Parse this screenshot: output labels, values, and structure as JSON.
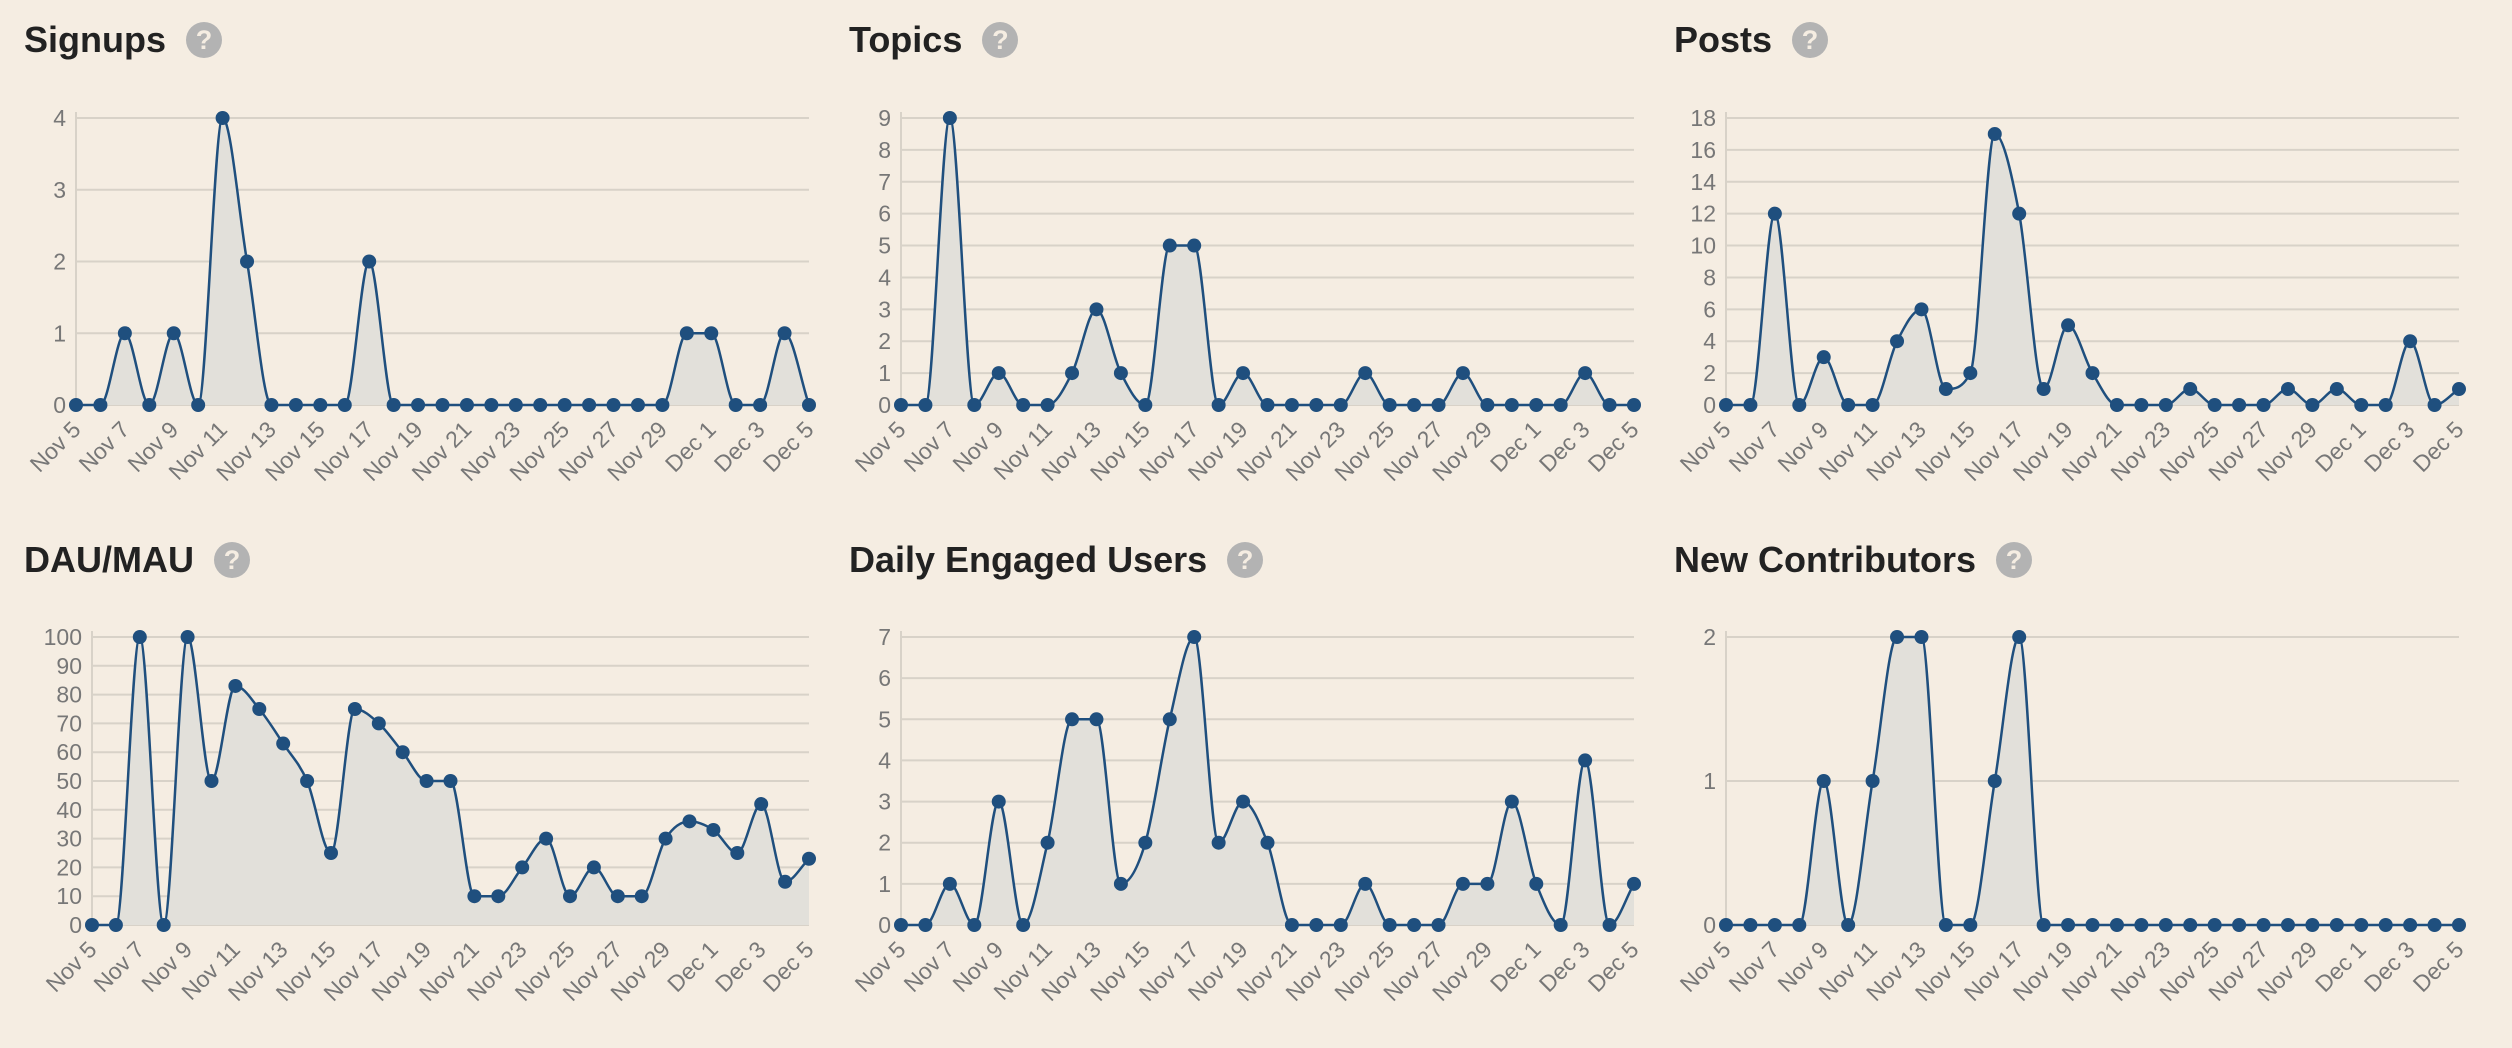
{
  "colors": {
    "background": "#f5ede2",
    "line": "#1f4f7e",
    "fill": "#e2e0da",
    "grid": "#d8d2c8",
    "axis_text": "#777777",
    "help_icon": "#b3b3b3"
  },
  "help_icon_glyph": "?",
  "panels": [
    {
      "title": "Signups"
    },
    {
      "title": "Topics"
    },
    {
      "title": "Posts"
    },
    {
      "title": "DAU/MAU"
    },
    {
      "title": "Daily Engaged Users"
    },
    {
      "title": "New Contributors"
    }
  ],
  "chart_data": [
    {
      "type": "area",
      "title": "Signups",
      "y_ticks": [
        "0",
        "1",
        "2",
        "3",
        "4"
      ],
      "ylim": [
        0,
        4
      ],
      "x_tick_labels": [
        "Nov 5",
        "Nov 7",
        "Nov 9",
        "Nov 11",
        "Nov 13",
        "Nov 15",
        "Nov 17",
        "Nov 19",
        "Nov 21",
        "Nov 23",
        "Nov 25",
        "Nov 27",
        "Nov 29",
        "Dec 1",
        "Dec 3",
        "Dec 5"
      ],
      "values": [
        0,
        0,
        1,
        0,
        1,
        0,
        4,
        2,
        0,
        0,
        0,
        0,
        2,
        0,
        0,
        0,
        0,
        0,
        0,
        0,
        0,
        0,
        0,
        0,
        0,
        1,
        1,
        0,
        0,
        1,
        0
      ]
    },
    {
      "type": "area",
      "title": "Topics",
      "y_ticks": [
        "0",
        "1",
        "2",
        "3",
        "4",
        "5",
        "6",
        "7",
        "8",
        "9"
      ],
      "ylim": [
        0,
        9
      ],
      "x_tick_labels": [
        "Nov 5",
        "Nov 7",
        "Nov 9",
        "Nov 11",
        "Nov 13",
        "Nov 15",
        "Nov 17",
        "Nov 19",
        "Nov 21",
        "Nov 23",
        "Nov 25",
        "Nov 27",
        "Nov 29",
        "Dec 1",
        "Dec 3",
        "Dec 5"
      ],
      "values": [
        0,
        0,
        9,
        0,
        1,
        0,
        0,
        1,
        3,
        1,
        0,
        5,
        5,
        0,
        1,
        0,
        0,
        0,
        0,
        1,
        0,
        0,
        0,
        1,
        0,
        0,
        0,
        0,
        1,
        0,
        0
      ]
    },
    {
      "type": "area",
      "title": "Posts",
      "y_ticks": [
        "0",
        "2",
        "4",
        "6",
        "8",
        "10",
        "12",
        "14",
        "16",
        "18"
      ],
      "ylim": [
        0,
        18
      ],
      "x_tick_labels": [
        "Nov 5",
        "Nov 7",
        "Nov 9",
        "Nov 11",
        "Nov 13",
        "Nov 15",
        "Nov 17",
        "Nov 19",
        "Nov 21",
        "Nov 23",
        "Nov 25",
        "Nov 27",
        "Nov 29",
        "Dec 1",
        "Dec 3",
        "Dec 5"
      ],
      "values": [
        0,
        0,
        12,
        0,
        3,
        0,
        0,
        4,
        6,
        1,
        2,
        17,
        12,
        1,
        5,
        2,
        0,
        0,
        0,
        1,
        0,
        0,
        0,
        1,
        0,
        1,
        0,
        0,
        4,
        0,
        1
      ]
    },
    {
      "type": "area",
      "title": "DAU/MAU",
      "y_ticks": [
        "0",
        "10",
        "20",
        "30",
        "40",
        "50",
        "60",
        "70",
        "80",
        "90",
        "100"
      ],
      "ylim": [
        0,
        100
      ],
      "x_tick_labels": [
        "Nov 5",
        "Nov 7",
        "Nov 9",
        "Nov 11",
        "Nov 13",
        "Nov 15",
        "Nov 17",
        "Nov 19",
        "Nov 21",
        "Nov 23",
        "Nov 25",
        "Nov 27",
        "Nov 29",
        "Dec 1",
        "Dec 3",
        "Dec 5"
      ],
      "values": [
        0,
        0,
        100,
        0,
        100,
        50,
        83,
        75,
        63,
        50,
        25,
        75,
        70,
        60,
        50,
        50,
        10,
        10,
        20,
        30,
        10,
        20,
        10,
        10,
        30,
        36,
        33,
        25,
        42,
        15,
        23
      ]
    },
    {
      "type": "area",
      "title": "Daily Engaged Users",
      "y_ticks": [
        "0",
        "1",
        "2",
        "3",
        "4",
        "5",
        "6",
        "7"
      ],
      "ylim": [
        0,
        7
      ],
      "x_tick_labels": [
        "Nov 5",
        "Nov 7",
        "Nov 9",
        "Nov 11",
        "Nov 13",
        "Nov 15",
        "Nov 17",
        "Nov 19",
        "Nov 21",
        "Nov 23",
        "Nov 25",
        "Nov 27",
        "Nov 29",
        "Dec 1",
        "Dec 3",
        "Dec 5"
      ],
      "values": [
        0,
        0,
        1,
        0,
        3,
        0,
        2,
        5,
        5,
        1,
        2,
        5,
        7,
        2,
        3,
        2,
        0,
        0,
        0,
        1,
        0,
        0,
        0,
        1,
        1,
        3,
        1,
        0,
        4,
        0,
        1
      ]
    },
    {
      "type": "area",
      "title": "New Contributors",
      "y_ticks": [
        "0",
        "1",
        "2"
      ],
      "ylim": [
        0,
        2
      ],
      "x_tick_labels": [
        "Nov 5",
        "Nov 7",
        "Nov 9",
        "Nov 11",
        "Nov 13",
        "Nov 15",
        "Nov 17",
        "Nov 19",
        "Nov 21",
        "Nov 23",
        "Nov 25",
        "Nov 27",
        "Nov 29",
        "Dec 1",
        "Dec 3",
        "Dec 5"
      ],
      "values": [
        0,
        0,
        0,
        0,
        1,
        0,
        1,
        2,
        2,
        0,
        0,
        1,
        2,
        0,
        0,
        0,
        0,
        0,
        0,
        0,
        0,
        0,
        0,
        0,
        0,
        0,
        0,
        0,
        0,
        0,
        0
      ]
    }
  ]
}
